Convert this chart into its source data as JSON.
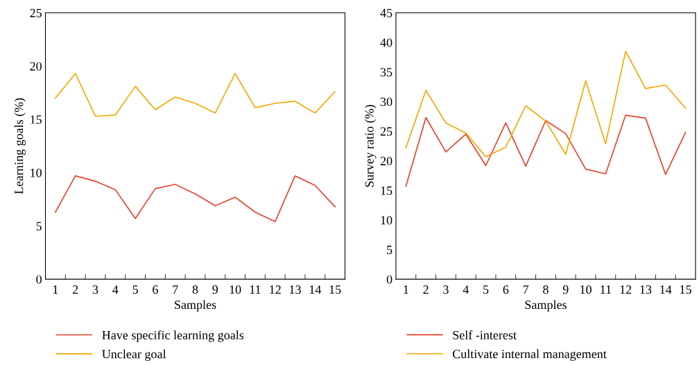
{
  "chart_data": [
    {
      "type": "line",
      "xlabel": "Samples",
      "ylabel": "Learning goals (%)",
      "categories": [
        "1",
        "2",
        "3",
        "4",
        "5",
        "6",
        "7",
        "8",
        "9",
        "10",
        "11",
        "12",
        "13",
        "14",
        "15"
      ],
      "ylim": [
        0,
        25
      ],
      "yticks": [
        0,
        5,
        10,
        15,
        20,
        25
      ],
      "grid": false,
      "legend": "bottom",
      "series": [
        {
          "name": "Have specific learning goals",
          "color": "#e8412c",
          "values": [
            6.3,
            9.7,
            9.2,
            8.4,
            5.7,
            8.5,
            8.9,
            8.0,
            6.9,
            7.7,
            6.3,
            5.4,
            9.7,
            8.8,
            6.8
          ]
        },
        {
          "name": "Unclear goal",
          "color": "#f5a800",
          "values": [
            17.0,
            19.3,
            15.3,
            15.4,
            18.1,
            15.9,
            17.1,
            16.5,
            15.6,
            19.3,
            16.1,
            16.5,
            16.7,
            15.6,
            17.6
          ]
        }
      ]
    },
    {
      "type": "line",
      "xlabel": "Samples",
      "ylabel": "Survey ratio (%)",
      "categories": [
        "1",
        "2",
        "3",
        "4",
        "5",
        "6",
        "7",
        "8",
        "9",
        "10",
        "11",
        "12",
        "13",
        "14",
        "15"
      ],
      "ylim": [
        0,
        45
      ],
      "yticks": [
        0,
        5,
        10,
        15,
        20,
        25,
        30,
        35,
        40,
        45
      ],
      "grid": false,
      "legend": "bottom",
      "series": [
        {
          "name": "Self -interest",
          "color": "#e8412c",
          "values": [
            15.7,
            27.3,
            21.5,
            24.5,
            19.2,
            26.4,
            19.1,
            26.8,
            24.6,
            18.6,
            17.8,
            27.7,
            27.2,
            17.7,
            24.8
          ]
        },
        {
          "name": "Cultivate internal management",
          "color": "#f5a800",
          "values": [
            22.2,
            31.9,
            26.4,
            24.7,
            20.7,
            22.3,
            29.3,
            26.7,
            21.1,
            33.5,
            22.9,
            38.5,
            32.2,
            32.8,
            28.9
          ]
        }
      ]
    }
  ]
}
